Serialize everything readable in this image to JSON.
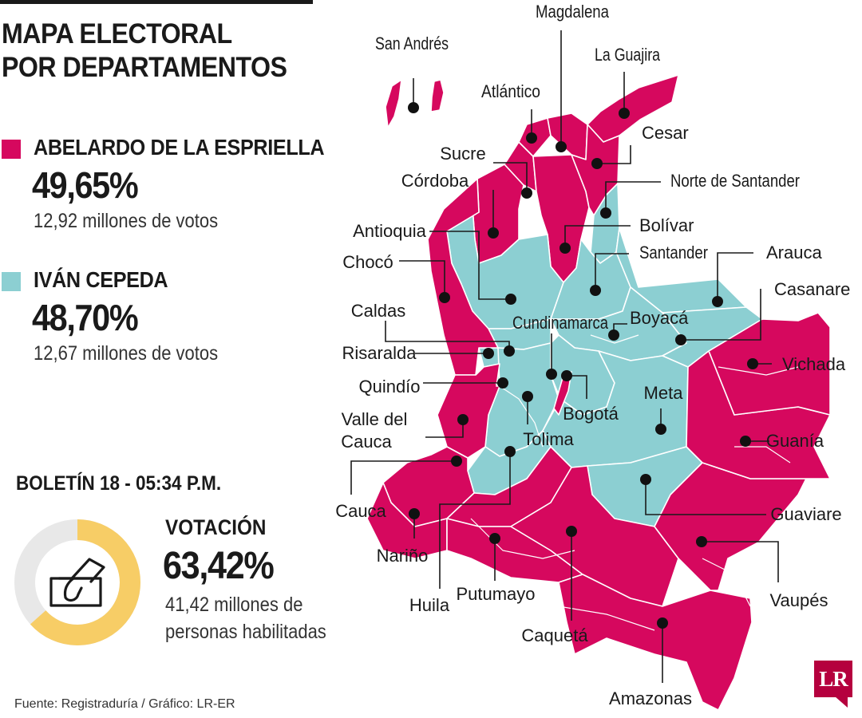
{
  "title": {
    "line1": "MAPA ELECTORAL",
    "line2": "POR DEPARTAMENTOS"
  },
  "colors": {
    "esprielle": "#d6085e",
    "cepeda": "#8ccfd2",
    "turnout": "#f7cd66",
    "remaining": "#e8e8e8",
    "ink": "#1a1a1a",
    "border": "#ffffff"
  },
  "candidates": [
    {
      "name": "ABELARDO DE LA ESPRIELLA",
      "pct": "49,65%",
      "votes": "12,92 millones de votos",
      "color": "#d6085e"
    },
    {
      "name": "IVÁN CEPEDA",
      "pct": "48,70%",
      "votes": "12,67 millones de votos",
      "color": "#8ccfd2"
    }
  ],
  "bulletin": "BOLETÍN 18 - 05:34 P.M.",
  "turnout": {
    "label": "VOTACIÓN",
    "pct": "63,42%",
    "value": 0.6342,
    "line1": "41,42 millones de",
    "line2": "personas habilitadas",
    "icon": "ballot-box-icon"
  },
  "source": "Fuente: Registraduría / Gráfico: LR-ER",
  "logo": "LR",
  "departments": [
    {
      "name": "San Andrés",
      "winner": "esprielle"
    },
    {
      "name": "Magdalena",
      "winner": "esprielle"
    },
    {
      "name": "La Guajira",
      "winner": "esprielle"
    },
    {
      "name": "Atlántico",
      "winner": "esprielle"
    },
    {
      "name": "Cesar",
      "winner": "esprielle"
    },
    {
      "name": "Sucre",
      "winner": "esprielle"
    },
    {
      "name": "Córdoba",
      "winner": "esprielle"
    },
    {
      "name": "Norte de Santander",
      "winner": "cepeda"
    },
    {
      "name": "Bolívar",
      "winner": "esprielle"
    },
    {
      "name": "Antioquia",
      "winner": "cepeda"
    },
    {
      "name": "Santander",
      "winner": "cepeda"
    },
    {
      "name": "Arauca",
      "winner": "cepeda"
    },
    {
      "name": "Chocó",
      "winner": "esprielle"
    },
    {
      "name": "Casanare",
      "winner": "cepeda"
    },
    {
      "name": "Caldas",
      "winner": "cepeda"
    },
    {
      "name": "Boyacá",
      "winner": "cepeda"
    },
    {
      "name": "Cundinamarca",
      "winner": "cepeda"
    },
    {
      "name": "Risaralda",
      "winner": "cepeda"
    },
    {
      "name": "Vichada",
      "winner": "esprielle"
    },
    {
      "name": "Quindío",
      "winner": "cepeda"
    },
    {
      "name": "Bogotá",
      "winner": "esprielle"
    },
    {
      "name": "Meta",
      "winner": "cepeda"
    },
    {
      "name": "Valle del Cauca",
      "winner": "esprielle"
    },
    {
      "name": "Tolima",
      "winner": "cepeda"
    },
    {
      "name": "Guanía",
      "winner": "esprielle"
    },
    {
      "name": "Cauca",
      "winner": "esprielle"
    },
    {
      "name": "Guaviare",
      "winner": "cepeda"
    },
    {
      "name": "Nariño",
      "winner": "esprielle"
    },
    {
      "name": "Vaupés",
      "winner": "esprielle"
    },
    {
      "name": "Putumayo",
      "winner": "esprielle"
    },
    {
      "name": "Huila",
      "winner": "esprielle"
    },
    {
      "name": "Caquetá",
      "winner": "esprielle"
    },
    {
      "name": "Amazonas",
      "winner": "esprielle"
    }
  ]
}
